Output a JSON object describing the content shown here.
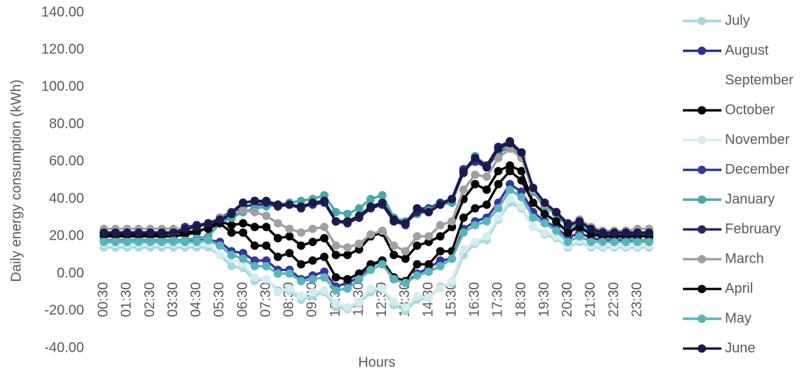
{
  "chart_data": {
    "type": "line",
    "y_label": "Daily energy consumption (kWh)",
    "x_label": "Hours",
    "categories": [
      "00:30",
      null,
      "01:30",
      null,
      "02:30",
      null,
      "03:30",
      null,
      "04:30",
      null,
      "05:30",
      null,
      "06:30",
      null,
      "07:30",
      null,
      "08:30",
      null,
      "09:30",
      null,
      "10:30",
      null,
      "11:30",
      null,
      "12:30",
      null,
      "13:30",
      null,
      "14:30",
      null,
      "15:30",
      null,
      "16:30",
      null,
      "17:30",
      null,
      "18:30",
      null,
      "19:30",
      null,
      "20:30",
      null,
      "21:30",
      null,
      "22:30",
      null,
      "23:30",
      null
    ],
    "ylim": [
      -40,
      140
    ],
    "yticks": [
      {
        "value": -40,
        "label": "-40.00"
      },
      {
        "value": -20,
        "label": "-20.00"
      },
      {
        "value": 0,
        "label": "0.00"
      },
      {
        "value": 20,
        "label": "20.00"
      },
      {
        "value": 40,
        "label": "40.00"
      },
      {
        "value": 60,
        "label": "60.00"
      },
      {
        "value": 80,
        "label": "80.00"
      },
      {
        "value": 100,
        "label": "100.00"
      },
      {
        "value": 120,
        "label": "120.00"
      },
      {
        "value": 140,
        "label": "140.00"
      }
    ],
    "grid": false,
    "legend": "right",
    "series": [
      {
        "name": "July",
        "color": "#a8d8dc",
        "values": [
          14,
          14,
          14,
          14,
          14,
          14,
          14,
          14,
          14,
          14,
          10,
          4,
          3,
          -4,
          -3,
          -9,
          -9,
          -14,
          -12,
          -10,
          -18,
          -19,
          -16,
          -10,
          -8,
          -17,
          -20,
          -14,
          -13,
          -7,
          -5,
          10,
          16,
          18,
          29,
          38,
          35,
          25,
          21,
          19,
          14,
          17,
          14,
          14,
          14,
          14,
          14,
          14
        ]
      },
      {
        "name": "August",
        "color": "#2e3192",
        "values": [
          22,
          22,
          22,
          22,
          22,
          22,
          22,
          25,
          26,
          27,
          29,
          30,
          36,
          37,
          37,
          37,
          37,
          36,
          37,
          38,
          28,
          28,
          30,
          36,
          38,
          28,
          26,
          35,
          35,
          38,
          40,
          56,
          60,
          57,
          65,
          68,
          63,
          44,
          36,
          32,
          26,
          27,
          23,
          21,
          21,
          21,
          21,
          21
        ]
      },
      {
        "name": "September",
        "values": [
          null,
          null,
          null,
          null,
          null,
          null,
          null,
          null,
          null,
          null,
          null,
          null,
          null,
          null,
          null,
          null,
          null,
          null,
          null,
          null,
          null,
          null,
          null,
          null,
          null,
          null,
          null,
          null,
          null,
          null,
          null,
          null,
          null,
          null,
          null,
          null,
          null,
          null,
          null,
          null,
          null,
          null,
          null,
          null,
          null,
          null,
          null,
          null
        ]
      },
      {
        "name": "October",
        "color": "#000000",
        "values": [
          20,
          20,
          20,
          20,
          20,
          20,
          20,
          21,
          22,
          25,
          28,
          26,
          27,
          25,
          25,
          19,
          20,
          15,
          17,
          19,
          10,
          10,
          13,
          20,
          22,
          10,
          8,
          15,
          17,
          20,
          25,
          40,
          48,
          45,
          55,
          58,
          55,
          38,
          32,
          28,
          22,
          26,
          22,
          20,
          20,
          20,
          20,
          20
        ]
      },
      {
        "name": "November",
        "color": "#d4ecef",
        "values": [
          16,
          16,
          16,
          16,
          16,
          16,
          16,
          16,
          16,
          16,
          10,
          8,
          5,
          -2,
          -3,
          -10,
          -8,
          -12,
          -10,
          -9,
          -16,
          -18,
          -15,
          -8,
          -8,
          -15,
          -18,
          -12,
          -13,
          -8,
          -4,
          13,
          17,
          20,
          30,
          40,
          36,
          25,
          22,
          20,
          15,
          18,
          15,
          15,
          15,
          15,
          15,
          15
        ]
      },
      {
        "name": "December",
        "color": "#33389e",
        "values": [
          18,
          18,
          18,
          18,
          18,
          18,
          18,
          18,
          18,
          18,
          17,
          12,
          11,
          7,
          7,
          2,
          2,
          -3,
          -1,
          1,
          -7,
          -5,
          -2,
          4,
          7,
          -3,
          -5,
          0,
          3,
          7,
          8,
          24,
          28,
          30,
          38,
          48,
          44,
          33,
          28,
          25,
          19,
          22,
          19,
          18,
          18,
          18,
          18,
          18
        ]
      },
      {
        "name": "January",
        "color": "#4aa8a8",
        "values": [
          18,
          18,
          18,
          18,
          18,
          18,
          18,
          18,
          19,
          20,
          27,
          30,
          33,
          35,
          36,
          37,
          38,
          39,
          40,
          42,
          33,
          32,
          35,
          40,
          42,
          30,
          28,
          32,
          34,
          37,
          38,
          55,
          63,
          58,
          66,
          68,
          64,
          44,
          36,
          32,
          25,
          27,
          22,
          19,
          19,
          19,
          18,
          18
        ]
      },
      {
        "name": "February",
        "color": "#24245e",
        "values": [
          22,
          22,
          22,
          22,
          22,
          22,
          22,
          23,
          26,
          27,
          30,
          33,
          38,
          39,
          38,
          36,
          37,
          35,
          38,
          39,
          28,
          27,
          30,
          35,
          37,
          28,
          27,
          33,
          33,
          37,
          40,
          55,
          62,
          58,
          68,
          71,
          65,
          45,
          37,
          33,
          27,
          28,
          24,
          22,
          22,
          22,
          22,
          22
        ]
      },
      {
        "name": "March",
        "color": "#a0a0a0",
        "values": [
          24,
          24,
          24,
          24,
          24,
          24,
          24,
          24,
          25,
          27,
          30,
          32,
          34,
          33,
          31,
          27,
          24,
          22,
          24,
          25,
          15,
          14,
          16,
          21,
          23,
          15,
          12,
          20,
          20,
          26,
          28,
          45,
          53,
          52,
          62,
          67,
          62,
          45,
          37,
          33,
          26,
          29,
          25,
          23,
          23,
          23,
          24,
          24
        ]
      },
      {
        "name": "April",
        "color": "#0a0a0a",
        "values": [
          21,
          21,
          21,
          21,
          21,
          21,
          22,
          22,
          23,
          24,
          27,
          22,
          22,
          15,
          15,
          9,
          11,
          5,
          7,
          9,
          -2,
          -3,
          0,
          5,
          7,
          -2,
          -4,
          5,
          5,
          12,
          12,
          30,
          35,
          37,
          48,
          55,
          50,
          38,
          32,
          28,
          22,
          25,
          21,
          20,
          20,
          20,
          20,
          20
        ]
      },
      {
        "name": "May",
        "color": "#5ab4bc",
        "values": [
          17,
          17,
          17,
          17,
          17,
          17,
          17,
          17,
          17,
          18,
          15,
          10,
          8,
          4,
          4,
          0,
          0,
          -4,
          -3,
          -2,
          -9,
          -8,
          -3,
          2,
          5,
          -3,
          -5,
          -1,
          1,
          4,
          8,
          22,
          26,
          28,
          35,
          45,
          41,
          30,
          27,
          23,
          17,
          20,
          17,
          17,
          17,
          17,
          17,
          17
        ]
      },
      {
        "name": "June",
        "color": "#1a1a4e",
        "values": [
          22,
          22,
          22,
          22,
          22,
          22,
          22,
          24,
          25,
          27,
          29,
          32,
          38,
          39,
          39,
          37,
          37,
          36,
          38,
          39,
          28,
          28,
          31,
          36,
          38,
          29,
          27,
          35,
          33,
          37,
          40,
          54,
          62,
          57,
          67,
          70,
          65,
          46,
          38,
          33,
          26,
          28,
          24,
          22,
          22,
          22,
          22,
          22
        ]
      }
    ]
  }
}
